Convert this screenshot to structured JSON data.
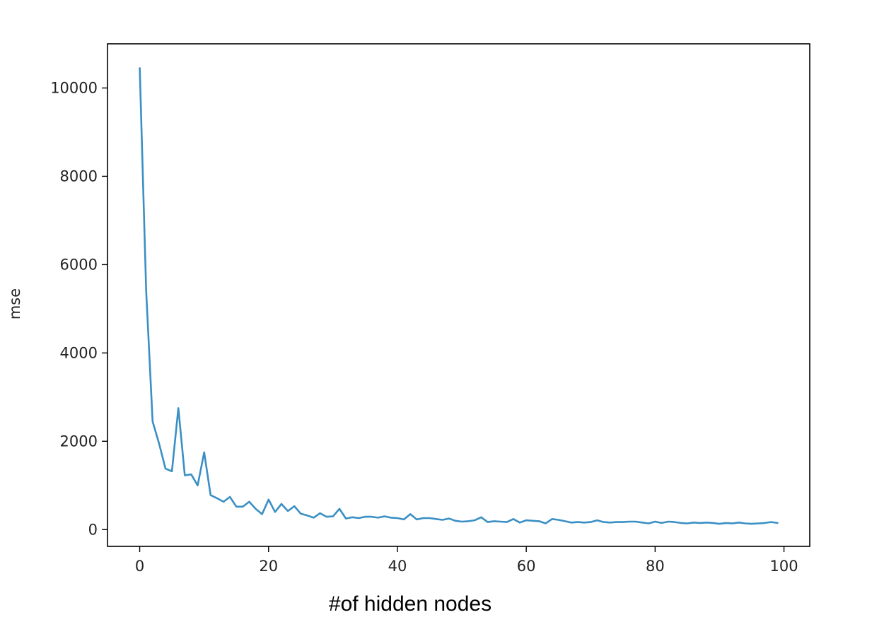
{
  "chart_data": {
    "type": "line",
    "title": "",
    "xlabel": "#of hidden nodes",
    "ylabel": "mse",
    "xlim": [
      -5,
      104
    ],
    "ylim": [
      -380,
      11000
    ],
    "xticks": [
      0,
      20,
      40,
      60,
      80,
      100
    ],
    "yticks": [
      0,
      2000,
      4000,
      6000,
      8000,
      10000
    ],
    "grid": false,
    "line_color": "#3a8fc4",
    "series": [
      {
        "x": [
          0,
          1,
          2,
          3,
          4,
          5,
          6,
          7,
          8,
          9,
          10,
          11,
          12,
          13,
          14,
          15,
          16,
          17,
          18,
          19,
          20,
          21,
          22,
          23,
          24,
          25,
          26,
          27,
          28,
          29,
          30,
          31,
          32,
          33,
          34,
          35,
          36,
          37,
          38,
          39,
          40,
          41,
          42,
          43,
          44,
          45,
          46,
          47,
          48,
          49,
          50,
          51,
          52,
          53,
          54,
          55,
          56,
          57,
          58,
          59,
          60,
          61,
          62,
          63,
          64,
          65,
          66,
          67,
          68,
          69,
          70,
          71,
          72,
          73,
          74,
          75,
          76,
          77,
          78,
          79,
          80,
          81,
          82,
          83,
          84,
          85,
          86,
          87,
          88,
          89,
          90,
          91,
          92,
          93,
          94,
          95,
          96,
          97,
          98,
          99
        ],
        "values": [
          10450,
          5400,
          2450,
          1950,
          1380,
          1320,
          2750,
          1230,
          1250,
          1000,
          1750,
          780,
          710,
          630,
          740,
          520,
          520,
          630,
          470,
          350,
          680,
          400,
          580,
          420,
          530,
          360,
          320,
          270,
          370,
          290,
          300,
          470,
          250,
          280,
          260,
          290,
          290,
          270,
          300,
          270,
          260,
          230,
          350,
          230,
          260,
          260,
          240,
          220,
          250,
          200,
          180,
          190,
          210,
          280,
          170,
          190,
          180,
          170,
          240,
          160,
          210,
          200,
          190,
          140,
          240,
          220,
          190,
          160,
          170,
          160,
          170,
          210,
          170,
          160,
          170,
          170,
          180,
          180,
          160,
          140,
          180,
          150,
          180,
          170,
          150,
          140,
          160,
          150,
          160,
          150,
          130,
          150,
          140,
          160,
          140,
          130,
          140,
          150,
          170,
          150
        ]
      }
    ]
  }
}
